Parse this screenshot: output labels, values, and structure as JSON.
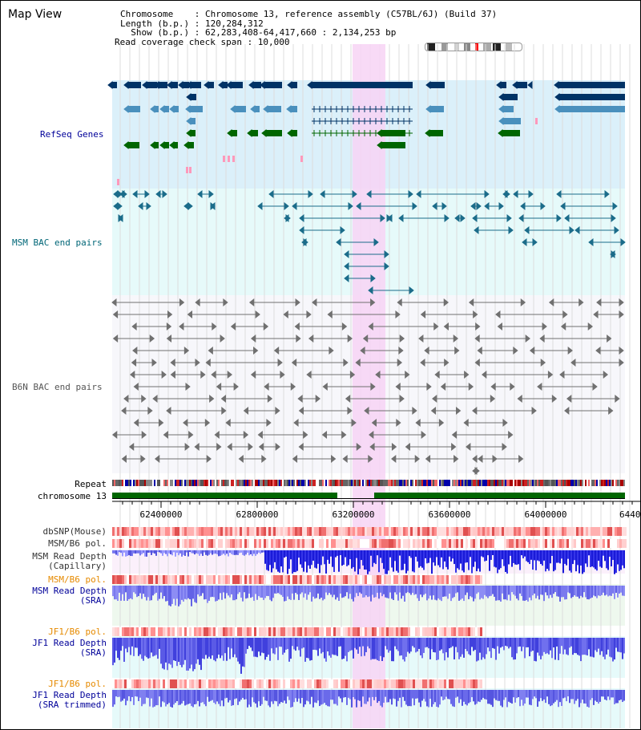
{
  "header": {
    "title": "Map View",
    "chromosome_line": "Chromosome    : Chromosome 13, reference assembly (C57BL/6J) (Build 37)",
    "length_line": "Length (b.p.) : 120,284,312",
    "show_line": "  Show (b.p.) : 62,283,408-64,417,660 : 2,134,253 bp",
    "coverage_line": "Read coverage check span : 10,000"
  },
  "tracks": {
    "refseq": "RefSeq Genes",
    "msm_bac": "MSM BAC end pairs",
    "b6n_bac": "B6N BAC end pairs",
    "repeat": "Repeat",
    "chromosome": "chromosome 13",
    "dbsnp": "dbSNP(Mouse)",
    "msm_b6_pol": "MSM/B6 pol.",
    "msm_read_depth_cap_1": "MSM Read Depth",
    "msm_read_depth_cap_2": "(Capillary)",
    "msm_b6_pol_2": "MSM/B6 pol.",
    "msm_read_depth_sra_1": "MSM Read Depth",
    "msm_read_depth_sra_2": "(SRA)",
    "jf1_b6_pol": "JF1/B6 pol.",
    "jf1_read_depth_1": "JF1 Read Depth",
    "jf1_read_depth_2": "(SRA)",
    "jf1_b6_pol_2": "JF1/B6 pol.",
    "jf1_read_depth_tr_1": "JF1 Read Depth",
    "jf1_read_depth_tr_2": "(SRA trimmed)"
  },
  "axis": {
    "ticks": [
      "62400000",
      "62800000",
      "63200000",
      "63600000",
      "64000000",
      "6440"
    ]
  },
  "colors": {
    "refseq_bg": "#dbf0fa",
    "msm_bg": "#e6fafa",
    "b6n_bg": "#f7f7fb",
    "highlight": "#f7d4f4",
    "gene_dark": "#003366",
    "gene_mid": "#4a90bd",
    "gene_green": "#006600",
    "gene_pink": "#ff99bb",
    "msm_pair": "#1b6c8a",
    "b6n_pair": "#707070",
    "label_blue": "#000099",
    "label_teal": "#006677",
    "label_orange": "#e68a00",
    "depth_blue": "#2a2ad8",
    "chrom_green": "#006600"
  }
}
